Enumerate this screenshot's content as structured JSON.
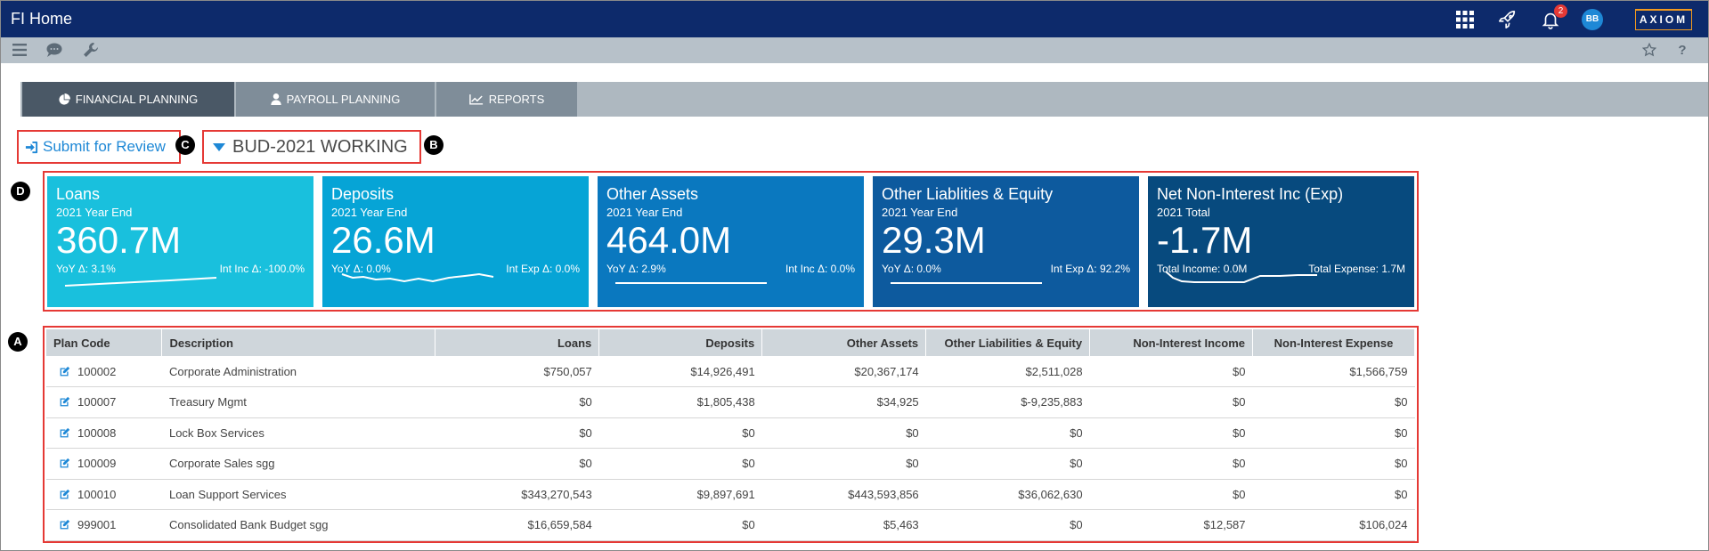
{
  "app": {
    "title": "FI Home",
    "brand": "AXIOM"
  },
  "topbar": {
    "notification_count": "2",
    "user_initials": "BB",
    "icons": [
      "apps-grid-icon",
      "rocket-icon",
      "bell-icon"
    ]
  },
  "toolbar2": {
    "icons": [
      "menu-icon",
      "chat-icon",
      "wrench-icon",
      "star-icon",
      "help-icon"
    ]
  },
  "tabs": [
    {
      "label": "FINANCIAL PLANNING",
      "icon": "pie-chart-icon",
      "active": true
    },
    {
      "label": "PAYROLL PLANNING",
      "icon": "user-icon",
      "active": false
    },
    {
      "label": "REPORTS",
      "icon": "line-chart-icon",
      "active": false
    }
  ],
  "header": {
    "submit_label": "Submit for Review",
    "plan_label": "BUD-2021 WORKING"
  },
  "callouts": {
    "a": "A",
    "b": "B",
    "c": "C",
    "d": "D"
  },
  "kpis": [
    {
      "title": "Loans",
      "subtitle": "2021 Year End",
      "value": "360.7M",
      "left": "YoY Δ: 3.1%",
      "right": "Int Inc Δ: -100.0%",
      "color": "#19c0dd"
    },
    {
      "title": "Deposits",
      "subtitle": "2021 Year End",
      "value": "26.6M",
      "left": "YoY Δ: 0.0%",
      "right": "Int Exp Δ: 0.0%",
      "color": "#06a4d6"
    },
    {
      "title": "Other Assets",
      "subtitle": "2021 Year End",
      "value": "464.0M",
      "left": "YoY Δ: 2.9%",
      "right": "Int Inc Δ: 0.0%",
      "color": "#0a78bf"
    },
    {
      "title": "Other Liablities & Equity",
      "subtitle": "2021 Year End",
      "value": "29.3M",
      "left": "YoY Δ: 0.0%",
      "right": "Int Exp Δ: 92.2%",
      "color": "#0d5a9e"
    },
    {
      "title": "Net Non-Interest Inc (Exp)",
      "subtitle": "2021 Total",
      "value": "-1.7M",
      "left": "Total Income: 0.0M",
      "right": "Total Expense: 1.7M",
      "color": "#074a7e"
    }
  ],
  "table": {
    "headers": [
      "Plan Code",
      "Description",
      "Loans",
      "Deposits",
      "Other Assets",
      "Other Liabilities & Equity",
      "Non-Interest Income",
      "Non-Interest Expense"
    ],
    "rows": [
      [
        "100002",
        "Corporate Administration",
        "$750,057",
        "$14,926,491",
        "$20,367,174",
        "$2,511,028",
        "$0",
        "$1,566,759"
      ],
      [
        "100007",
        "Treasury Mgmt",
        "$0",
        "$1,805,438",
        "$34,925",
        "$-9,235,883",
        "$0",
        "$0"
      ],
      [
        "100008",
        "Lock Box Services",
        "$0",
        "$0",
        "$0",
        "$0",
        "$0",
        "$0"
      ],
      [
        "100009",
        "Corporate Sales sgg",
        "$0",
        "$0",
        "$0",
        "$0",
        "$0",
        "$0"
      ],
      [
        "100010",
        "Loan Support Services",
        "$343,270,543",
        "$9,897,691",
        "$443,593,856",
        "$36,062,630",
        "$0",
        "$0"
      ],
      [
        "999001",
        "Consolidated Bank Budget sgg",
        "$16,659,584",
        "$0",
        "$5,463",
        "$0",
        "$12,587",
        "$106,024"
      ]
    ]
  },
  "colors": {
    "topbar": "#0d2a6b",
    "link": "#1e88d6",
    "highlight": "#e53935"
  }
}
